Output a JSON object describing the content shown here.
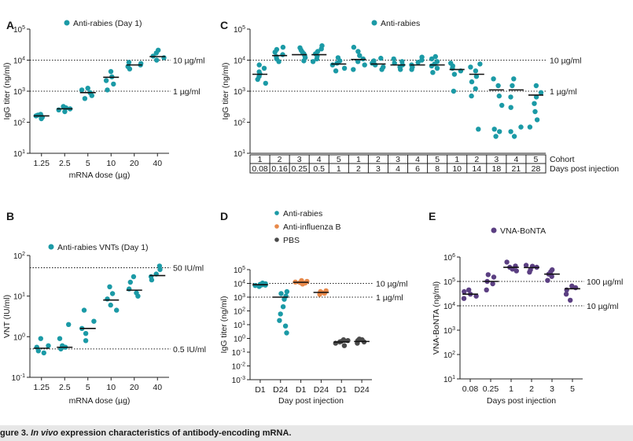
{
  "caption": {
    "label": "gure 3.",
    "italic": "In vivo",
    "text": " expression characteristics of antibody-encoding mRNA."
  },
  "colors": {
    "teal": "#1b9aa6",
    "orange": "#e8894a",
    "dark": "#4a4a4a",
    "purple": "#5b3f82",
    "bar": "#111111"
  },
  "chart_data": [
    {
      "panel": "A",
      "type": "scatter",
      "legend": "Anti-rabies (Day 1)",
      "xlabel": "mRNA dose (µg)",
      "ylabel": "IgG titer (ng/ml)",
      "yscale": "log",
      "ylim": [
        10,
        100000
      ],
      "yticks": [
        {
          "base": "10",
          "exp": "1"
        },
        {
          "base": "10",
          "exp": "2"
        },
        {
          "base": "10",
          "exp": "3"
        },
        {
          "base": "10",
          "exp": "4"
        },
        {
          "base": "10",
          "exp": "5"
        }
      ],
      "categories": [
        "1.25",
        "2.5",
        "5",
        "10",
        "20",
        "40"
      ],
      "color": "teal",
      "groups": [
        {
          "median": 160,
          "points": [
            130,
            145,
            160,
            170,
            180
          ]
        },
        {
          "median": 270,
          "points": [
            220,
            250,
            270,
            290,
            320
          ]
        },
        {
          "median": 900,
          "points": [
            580,
            720,
            900,
            1100,
            1250
          ]
        },
        {
          "median": 2800,
          "points": [
            1100,
            1700,
            2200,
            2900,
            4300
          ]
        },
        {
          "median": 7000,
          "points": [
            5200,
            6200,
            7000,
            7800,
            8500
          ]
        },
        {
          "median": 13000,
          "points": [
            10000,
            12000,
            13500,
            17000,
            21000
          ]
        }
      ],
      "reflines": [
        {
          "value": 10000,
          "label": "10 µg/ml"
        },
        {
          "value": 1000,
          "label": "1 µg/ml"
        }
      ]
    },
    {
      "panel": "B",
      "type": "scatter",
      "legend": "Anti-rabies VNTs (Day 1)",
      "xlabel": "mRNA dose (µg)",
      "ylabel": "VNT (IU/ml)",
      "yscale": "log",
      "ylim": [
        0.1,
        100
      ],
      "yticks": [
        {
          "base": "10",
          "exp": "-1"
        },
        {
          "base": "10",
          "exp": "0"
        },
        {
          "base": "10",
          "exp": "1"
        },
        {
          "base": "10",
          "exp": "2"
        }
      ],
      "categories": [
        "1.25",
        "2.5",
        "5",
        "10",
        "20",
        "40"
      ],
      "color": "teal",
      "groups": [
        {
          "median": 0.52,
          "points": [
            0.4,
            0.45,
            0.55,
            0.6,
            0.9
          ]
        },
        {
          "median": 0.55,
          "points": [
            0.5,
            0.55,
            0.6,
            0.9,
            2.0
          ]
        },
        {
          "median": 1.6,
          "points": [
            0.8,
            1.2,
            1.6,
            2.4,
            4.5
          ]
        },
        {
          "median": 8.0,
          "points": [
            4.5,
            6.0,
            8.5,
            11.5,
            17
          ]
        },
        {
          "median": 14,
          "points": [
            10,
            12,
            15,
            22,
            30
          ]
        },
        {
          "median": 32,
          "points": [
            25,
            30,
            35,
            45,
            55
          ]
        }
      ],
      "reflines": [
        {
          "value": 50,
          "label": "50 IU/ml"
        },
        {
          "value": 0.5,
          "label": "0.5 IU/ml"
        }
      ]
    },
    {
      "panel": "C",
      "type": "scatter",
      "legend": "Anti-rabies",
      "ylabel": "IgG titer (ng/ml)",
      "yscale": "log",
      "ylim": [
        10,
        100000
      ],
      "yticks": [
        {
          "base": "10",
          "exp": "1"
        },
        {
          "base": "10",
          "exp": "2"
        },
        {
          "base": "10",
          "exp": "3"
        },
        {
          "base": "10",
          "exp": "4"
        },
        {
          "base": "10",
          "exp": "5"
        }
      ],
      "row_labels": [
        "Cohort",
        "Days post injection"
      ],
      "cohort": [
        "1",
        "2",
        "3",
        "4",
        "5",
        "1",
        "2",
        "3",
        "4",
        "5",
        "1",
        "2",
        "3",
        "4",
        "5"
      ],
      "days": [
        "0.08",
        "0.16",
        "0.25",
        "0.5",
        "1",
        "2",
        "3",
        "4",
        "6",
        "8",
        "10",
        "14",
        "18",
        "21",
        "28"
      ],
      "color": "teal",
      "groups": [
        {
          "median": 3500,
          "points": [
            1800,
            2400,
            3000,
            3600,
            4200,
            5500,
            7000
          ]
        },
        {
          "median": 14000,
          "points": [
            9000,
            11000,
            13000,
            15000,
            18000,
            22000,
            26000
          ]
        },
        {
          "median": 15000,
          "points": [
            9500,
            12000,
            14000,
            16000,
            18000,
            21000,
            25000
          ]
        },
        {
          "median": 15000,
          "points": [
            9000,
            11000,
            13500,
            16000,
            19000,
            23000,
            29000
          ]
        },
        {
          "median": 7500,
          "points": [
            4500,
            5500,
            7000,
            8000,
            9500,
            12000
          ]
        },
        {
          "median": 10500,
          "points": [
            5000,
            7000,
            9000,
            11000,
            14000,
            19000,
            26000
          ]
        },
        {
          "median": 7500,
          "points": [
            5000,
            6000,
            7000,
            8000,
            9500,
            11500
          ]
        },
        {
          "median": 7000,
          "points": [
            5000,
            6000,
            7000,
            8000,
            9000,
            11000
          ]
        },
        {
          "median": 7000,
          "points": [
            5000,
            6000,
            7000,
            8500,
            10000,
            12500
          ]
        },
        {
          "median": 7000,
          "points": [
            4000,
            5500,
            6500,
            7500,
            9000,
            11000,
            13000
          ]
        },
        {
          "median": 5000,
          "points": [
            1000,
            3500,
            4500,
            5500,
            6500,
            8000
          ]
        },
        {
          "median": 3500,
          "points": [
            60,
            700,
            1200,
            2000,
            3000,
            4500,
            6000,
            7500
          ]
        },
        {
          "median": 1100,
          "points": [
            35,
            50,
            60,
            350,
            700,
            1500,
            2500
          ]
        },
        {
          "median": 1100,
          "points": [
            35,
            50,
            70,
            300,
            650,
            1500,
            2500
          ]
        },
        {
          "median": 750,
          "points": [
            70,
            120,
            220,
            400,
            650,
            900,
            1500
          ]
        }
      ],
      "reflines": [
        {
          "value": 10000,
          "label": "10 µg/ml"
        },
        {
          "value": 1000,
          "label": "1 µg/ml"
        }
      ]
    },
    {
      "panel": "D",
      "type": "scatter",
      "legend": [
        {
          "name": "Anti-rabies",
          "color": "teal"
        },
        {
          "name": "Anti-influenza B",
          "color": "orange"
        },
        {
          "name": "PBS",
          "color": "dark"
        }
      ],
      "xlabel": "Day post injection",
      "ylabel": "IgG titer (ng/ml)",
      "yscale": "log",
      "ylim": [
        0.001,
        100000
      ],
      "yticks": [
        {
          "base": "10",
          "exp": "-3"
        },
        {
          "base": "10",
          "exp": "-2"
        },
        {
          "base": "10",
          "exp": "-1"
        },
        {
          "base": "10",
          "exp": "0"
        },
        {
          "base": "10",
          "exp": "1"
        },
        {
          "base": "10",
          "exp": "2"
        },
        {
          "base": "10",
          "exp": "3"
        },
        {
          "base": "10",
          "exp": "4"
        },
        {
          "base": "10",
          "exp": "5"
        }
      ],
      "categories": [
        "D1",
        "D24",
        "D1",
        "D24",
        "D1",
        "D24"
      ],
      "groups": [
        {
          "color": "teal",
          "median": 8000,
          "points": [
            6000,
            7000,
            7500,
            8000,
            8500,
            9500,
            10500,
            6500
          ]
        },
        {
          "color": "teal",
          "median": 1000,
          "points": [
            2.5,
            8,
            20,
            60,
            200,
            700,
            1200,
            1800,
            2500
          ]
        },
        {
          "color": "orange",
          "median": 12000,
          "points": [
            9000,
            10500,
            11500,
            12500,
            14000,
            16000,
            10000
          ]
        },
        {
          "color": "orange",
          "median": 2200,
          "points": [
            1600,
            1900,
            2100,
            2300,
            2500,
            2900
          ]
        },
        {
          "color": "dark",
          "median": 0.55,
          "points": [
            0.3,
            0.45,
            0.55,
            0.6,
            0.7,
            0.8
          ]
        },
        {
          "color": "dark",
          "median": 0.6,
          "points": [
            0.45,
            0.55,
            0.6,
            0.7,
            0.8,
            0.9
          ]
        }
      ],
      "reflines": [
        {
          "value": 10000,
          "label": "10 µg/ml"
        },
        {
          "value": 1000,
          "label": "1 µg/ml"
        }
      ]
    },
    {
      "panel": "E",
      "type": "scatter",
      "legend": "VNA-BoNTA",
      "xlabel": "Days post injection",
      "ylabel": "VNA-BoNTA (ng/ml)",
      "yscale": "log",
      "ylim": [
        10,
        1000000
      ],
      "yticks": [
        {
          "base": "10",
          "exp": "1"
        },
        {
          "base": "10",
          "exp": "2"
        },
        {
          "base": "10",
          "exp": "3"
        },
        {
          "base": "10",
          "exp": "4"
        },
        {
          "base": "10",
          "exp": "5"
        },
        {
          "base": "10",
          "exp": "6"
        }
      ],
      "categories": [
        "0.08",
        "0.25",
        "1",
        "2",
        "3",
        "5"
      ],
      "color": "purple",
      "groups": [
        {
          "median": 30000,
          "points": [
            20000,
            25000,
            30000,
            38000,
            45000
          ]
        },
        {
          "median": 100000,
          "points": [
            45000,
            80000,
            100000,
            150000,
            190000
          ]
        },
        {
          "median": 380000,
          "points": [
            270000,
            320000,
            380000,
            430000,
            620000
          ]
        },
        {
          "median": 370000,
          "points": [
            240000,
            300000,
            380000,
            420000,
            460000
          ]
        },
        {
          "median": 200000,
          "points": [
            110000,
            160000,
            200000,
            250000,
            300000
          ]
        },
        {
          "median": 50000,
          "points": [
            17000,
            30000,
            45000,
            55000,
            65000
          ]
        }
      ],
      "reflines": [
        {
          "value": 100000,
          "label": "100 µg/ml"
        },
        {
          "value": 10000,
          "label": "10 µg/ml"
        }
      ]
    }
  ]
}
